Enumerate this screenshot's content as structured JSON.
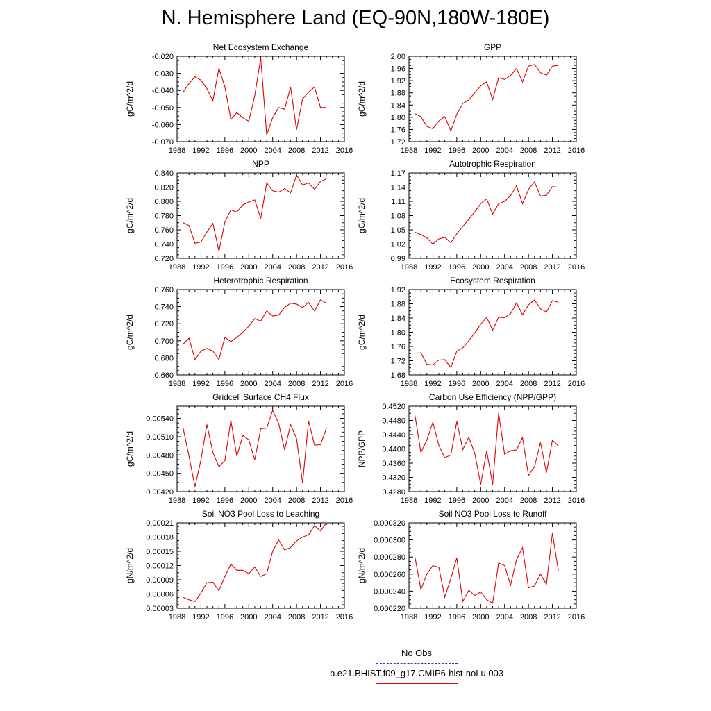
{
  "title": "N. Hemisphere Land (EQ-90N,180W-180E)",
  "legend": {
    "obs_label": "No Obs",
    "obs_color": "#3030c0",
    "case_label": "b.e21.BHIST.f09_g17.CMIP6-hist-noLu.003",
    "case_color": "#e00000"
  },
  "chart_data": [
    {
      "type": "line",
      "title": "Net Ecosystem Exchange",
      "ylabel": "gC/m^2/d",
      "xlim": [
        1988,
        2016
      ],
      "xticks": [
        "1988",
        "1992",
        "1996",
        "2000",
        "2004",
        "2008",
        "2012",
        "2016"
      ],
      "ylim": [
        -0.07,
        -0.02
      ],
      "yticks": [
        "-0.070",
        "-0.060",
        "-0.050",
        "-0.040",
        "-0.030",
        "-0.020"
      ],
      "x": [
        1989,
        1990,
        1991,
        1992,
        1993,
        1994,
        1995,
        1996,
        1997,
        1998,
        1999,
        2000,
        2001,
        2002,
        2003,
        2004,
        2005,
        2006,
        2007,
        2008,
        2009,
        2010,
        2011,
        2012,
        2013
      ],
      "y": [
        -0.041,
        -0.036,
        -0.032,
        -0.034,
        -0.039,
        -0.046,
        -0.027,
        -0.038,
        -0.057,
        -0.053,
        -0.056,
        -0.058,
        -0.043,
        -0.021,
        -0.066,
        -0.056,
        -0.05,
        -0.051,
        -0.038,
        -0.063,
        -0.045,
        -0.041,
        -0.038,
        -0.05,
        -0.05
      ]
    },
    {
      "type": "line",
      "title": "GPP",
      "ylabel": "gC/m^2/d",
      "xlim": [
        1988,
        2016
      ],
      "xticks": [
        "1988",
        "1992",
        "1996",
        "2000",
        "2004",
        "2008",
        "2012",
        "2016"
      ],
      "ylim": [
        1.72,
        2.0
      ],
      "yticks": [
        "1.72",
        "1.76",
        "1.80",
        "1.84",
        "1.88",
        "1.92",
        "1.96",
        "2.00"
      ],
      "x": [
        1989,
        1990,
        1991,
        1992,
        1993,
        1994,
        1995,
        1996,
        1997,
        1998,
        1999,
        2000,
        2001,
        2002,
        2003,
        2004,
        2005,
        2006,
        2007,
        2008,
        2009,
        2010,
        2011,
        2012,
        2013
      ],
      "y": [
        1.812,
        1.802,
        1.77,
        1.762,
        1.788,
        1.802,
        1.755,
        1.81,
        1.845,
        1.857,
        1.88,
        1.903,
        1.916,
        1.858,
        1.93,
        1.924,
        1.937,
        1.96,
        1.916,
        1.968,
        1.973,
        1.946,
        1.938,
        1.968,
        1.97
      ]
    },
    {
      "type": "line",
      "title": "NPP",
      "ylabel": "gC/m^2/d",
      "xlim": [
        1988,
        2016
      ],
      "xticks": [
        "1988",
        "1992",
        "1996",
        "2000",
        "2004",
        "2008",
        "2012",
        "2016"
      ],
      "ylim": [
        0.72,
        0.84
      ],
      "yticks": [
        "0.720",
        "0.740",
        "0.760",
        "0.780",
        "0.800",
        "0.820",
        "0.840"
      ],
      "x": [
        1989,
        1990,
        1991,
        1992,
        1993,
        1994,
        1995,
        1996,
        1997,
        1998,
        1999,
        2000,
        2001,
        2002,
        2003,
        2004,
        2005,
        2006,
        2007,
        2008,
        2009,
        2010,
        2011,
        2012,
        2013
      ],
      "y": [
        0.77,
        0.766,
        0.741,
        0.743,
        0.757,
        0.769,
        0.73,
        0.771,
        0.788,
        0.785,
        0.795,
        0.799,
        0.802,
        0.776,
        0.826,
        0.815,
        0.813,
        0.818,
        0.812,
        0.837,
        0.823,
        0.826,
        0.817,
        0.828,
        0.832
      ]
    },
    {
      "type": "line",
      "title": "Autotrophic Respiration",
      "ylabel": "gC/m^2/d",
      "xlim": [
        1988,
        2016
      ],
      "xticks": [
        "1988",
        "1992",
        "1996",
        "2000",
        "2004",
        "2008",
        "2012",
        "2016"
      ],
      "ylim": [
        0.99,
        1.17
      ],
      "yticks": [
        "0.99",
        "1.02",
        "1.05",
        "1.08",
        "1.11",
        "1.14",
        "1.17"
      ],
      "x": [
        1989,
        1990,
        1991,
        1992,
        1993,
        1994,
        1995,
        1996,
        1997,
        1998,
        1999,
        2000,
        2001,
        2002,
        2003,
        2004,
        2005,
        2006,
        2007,
        2008,
        2009,
        2010,
        2011,
        2012,
        2013
      ],
      "y": [
        1.045,
        1.04,
        1.033,
        1.02,
        1.031,
        1.034,
        1.023,
        1.042,
        1.057,
        1.072,
        1.088,
        1.105,
        1.115,
        1.083,
        1.105,
        1.11,
        1.122,
        1.143,
        1.105,
        1.135,
        1.151,
        1.121,
        1.123,
        1.141,
        1.14
      ]
    },
    {
      "type": "line",
      "title": "Heterotrophic Respiration",
      "ylabel": "gC/m^2/d",
      "xlim": [
        1988,
        2016
      ],
      "xticks": [
        "1988",
        "1992",
        "1996",
        "2000",
        "2004",
        "2008",
        "2012",
        "2016"
      ],
      "ylim": [
        0.66,
        0.76
      ],
      "yticks": [
        "0.660",
        "0.680",
        "0.700",
        "0.720",
        "0.740",
        "0.760"
      ],
      "x": [
        1989,
        1990,
        1991,
        1992,
        1993,
        1994,
        1995,
        1996,
        1997,
        1998,
        1999,
        2000,
        2001,
        2002,
        2003,
        2004,
        2005,
        2006,
        2007,
        2008,
        2009,
        2010,
        2011,
        2012,
        2013
      ],
      "y": [
        0.696,
        0.703,
        0.678,
        0.688,
        0.691,
        0.688,
        0.678,
        0.704,
        0.699,
        0.704,
        0.71,
        0.717,
        0.726,
        0.723,
        0.735,
        0.729,
        0.73,
        0.739,
        0.744,
        0.743,
        0.739,
        0.745,
        0.735,
        0.748,
        0.744
      ]
    },
    {
      "type": "line",
      "title": "Ecosystem Respiration",
      "ylabel": "gC/m^2/d",
      "xlim": [
        1988,
        2016
      ],
      "xticks": [
        "1988",
        "1992",
        "1996",
        "2000",
        "2004",
        "2008",
        "2012",
        "2016"
      ],
      "ylim": [
        1.68,
        1.92
      ],
      "yticks": [
        "1.68",
        "1.72",
        "1.76",
        "1.80",
        "1.84",
        "1.88",
        "1.92"
      ],
      "x": [
        1989,
        1990,
        1991,
        1992,
        1993,
        1994,
        1995,
        1996,
        1997,
        1998,
        1999,
        2000,
        2001,
        2002,
        2003,
        2004,
        2005,
        2006,
        2007,
        2008,
        2009,
        2010,
        2011,
        2012,
        2013
      ],
      "y": [
        1.741,
        1.742,
        1.71,
        1.708,
        1.722,
        1.723,
        1.701,
        1.747,
        1.756,
        1.776,
        1.798,
        1.822,
        1.842,
        1.806,
        1.842,
        1.841,
        1.852,
        1.883,
        1.849,
        1.877,
        1.891,
        1.866,
        1.857,
        1.889,
        1.884
      ]
    },
    {
      "type": "line",
      "title": "Gridcell Surface CH4 Flux",
      "ylabel": "gC/m^2/d",
      "xlim": [
        1988,
        2016
      ],
      "xticks": [
        "1988",
        "1992",
        "1996",
        "2000",
        "2004",
        "2008",
        "2012",
        "2016"
      ],
      "ylim": [
        0.0042,
        0.0056
      ],
      "yticks": [
        "0.00420",
        "0.00450",
        "0.00480",
        "0.00510",
        "0.00540"
      ],
      "x": [
        1989,
        1990,
        1991,
        1992,
        1993,
        1994,
        1995,
        1996,
        1997,
        1998,
        1999,
        2000,
        2001,
        2002,
        2003,
        2004,
        2005,
        2006,
        2007,
        2008,
        2009,
        2010,
        2011,
        2012,
        2013
      ],
      "y": [
        0.00525,
        0.00478,
        0.00428,
        0.00472,
        0.0053,
        0.00484,
        0.00461,
        0.00471,
        0.00537,
        0.00478,
        0.00512,
        0.00505,
        0.00472,
        0.00523,
        0.00524,
        0.00553,
        0.00532,
        0.00488,
        0.0053,
        0.00507,
        0.00434,
        0.00536,
        0.00496,
        0.00497,
        0.00524
      ]
    },
    {
      "type": "line",
      "title": "Carbon Use Efficiency (NPP/GPP)",
      "ylabel": "NPP/GPP",
      "xlim": [
        1988,
        2016
      ],
      "xticks": [
        "1988",
        "1992",
        "1996",
        "2000",
        "2004",
        "2008",
        "2012",
        "2016"
      ],
      "ylim": [
        0.428,
        0.452
      ],
      "yticks": [
        "0.4280",
        "0.4320",
        "0.4360",
        "0.4400",
        "0.4440",
        "0.4480",
        "0.4520"
      ],
      "x": [
        1989,
        1990,
        1991,
        1992,
        1993,
        1994,
        1995,
        1996,
        1997,
        1998,
        1999,
        2000,
        2001,
        2002,
        2003,
        2004,
        2005,
        2006,
        2007,
        2008,
        2009,
        2010,
        2011,
        2012,
        2013
      ],
      "y": [
        0.4495,
        0.439,
        0.4425,
        0.4475,
        0.441,
        0.4375,
        0.4383,
        0.4477,
        0.4398,
        0.4433,
        0.4388,
        0.43,
        0.4395,
        0.43,
        0.4501,
        0.4385,
        0.4395,
        0.4397,
        0.4432,
        0.4325,
        0.435,
        0.4418,
        0.4333,
        0.4425,
        0.4408
      ]
    },
    {
      "type": "line",
      "title": "Soil NO3 Pool Loss to Leaching",
      "ylabel": "gN/m^2/d",
      "xlim": [
        1988,
        2016
      ],
      "xticks": [
        "1988",
        "1992",
        "1996",
        "2000",
        "2004",
        "2008",
        "2012",
        "2016"
      ],
      "ylim": [
        3e-05,
        0.00021
      ],
      "yticks": [
        "0.00003",
        "0.00006",
        "0.00009",
        "0.00012",
        "0.00015",
        "0.00018",
        "0.00021"
      ],
      "x": [
        1989,
        1990,
        1991,
        1992,
        1993,
        1994,
        1995,
        1996,
        1997,
        1998,
        1999,
        2000,
        2001,
        2002,
        2003,
        2004,
        2005,
        2006,
        2007,
        2008,
        2009,
        2010,
        2011,
        2012,
        2013
      ],
      "y": [
        5.3e-05,
        4.8e-05,
        4.4e-05,
        6.2e-05,
        8.4e-05,
        8.5e-05,
        6.7e-05,
        9.7e-05,
        0.000123,
        0.00011,
        0.00011,
        0.000103,
        0.000117,
        9.7e-05,
        0.000103,
        0.00015,
        0.000174,
        0.000153,
        0.000158,
        0.000172,
        0.00018,
        0.000185,
        0.000204,
        0.000193,
        0.00021
      ]
    },
    {
      "type": "line",
      "title": "Soil NO3 Pool Loss to Runoff",
      "ylabel": "gN/m^2/d",
      "xlim": [
        1988,
        2016
      ],
      "xticks": [
        "1988",
        "1992",
        "1996",
        "2000",
        "2004",
        "2008",
        "2012",
        "2016"
      ],
      "ylim": [
        0.00022,
        0.00032
      ],
      "yticks": [
        "0.000220",
        "0.000240",
        "0.000260",
        "0.000280",
        "0.000300",
        "0.000320"
      ],
      "x": [
        1989,
        1990,
        1991,
        1992,
        1993,
        1994,
        1995,
        1996,
        1997,
        1998,
        1999,
        2000,
        2001,
        2002,
        2003,
        2004,
        2005,
        2006,
        2007,
        2008,
        2009,
        2010,
        2011,
        2012,
        2013
      ],
      "y": [
        0.00028,
        0.000242,
        0.00026,
        0.00027,
        0.000268,
        0.000233,
        0.000255,
        0.000279,
        0.000228,
        0.000241,
        0.000235,
        0.000239,
        0.00023,
        0.000226,
        0.000273,
        0.00027,
        0.000247,
        0.000277,
        0.000291,
        0.000244,
        0.000246,
        0.00026,
        0.000248,
        0.000308,
        0.000264
      ]
    }
  ]
}
